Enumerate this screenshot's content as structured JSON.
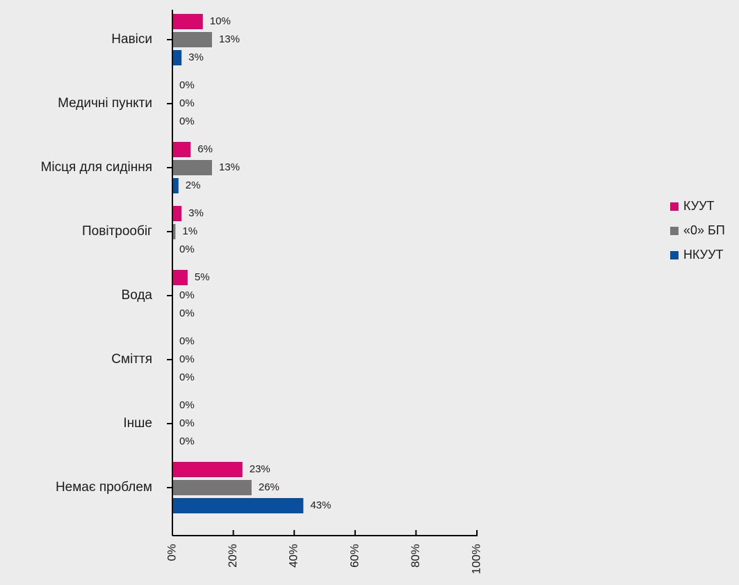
{
  "chart_data": {
    "type": "bar",
    "orientation": "horizontal",
    "categories": [
      "Навіси",
      "Медичні пункти",
      "Місця для сидіння",
      "Повітрообіг",
      "Вода",
      "Сміття",
      "Інше",
      "Немає проблем"
    ],
    "series": [
      {
        "name": "КУУТ",
        "color": "#d6086b",
        "values": [
          10,
          0,
          6,
          3,
          5,
          0,
          0,
          23
        ],
        "labels": [
          "10%",
          "0%",
          "6%",
          "3%",
          "5%",
          "0%",
          "0%",
          "23%"
        ]
      },
      {
        "name": "«0» БП",
        "color": "#767676",
        "values": [
          13,
          0,
          13,
          1,
          0,
          0,
          0,
          26
        ],
        "labels": [
          "13%",
          "0%",
          "13%",
          "1%",
          "0%",
          "0%",
          "0%",
          "26%"
        ]
      },
      {
        "name": "НКУУТ",
        "color": "#0a4f9e",
        "values": [
          3,
          0,
          2,
          0,
          0,
          0,
          0,
          43
        ],
        "labels": [
          "3%",
          "0%",
          "2%",
          "0%",
          "0%",
          "0%",
          "0%",
          "43%"
        ]
      }
    ],
    "xlim": [
      0,
      100
    ],
    "ticks": [
      0,
      20,
      40,
      60,
      80,
      100
    ],
    "tick_labels": [
      "0%",
      "20%",
      "40%",
      "60%",
      "80%",
      "100%"
    ],
    "legend_position": "right",
    "grid": false
  }
}
